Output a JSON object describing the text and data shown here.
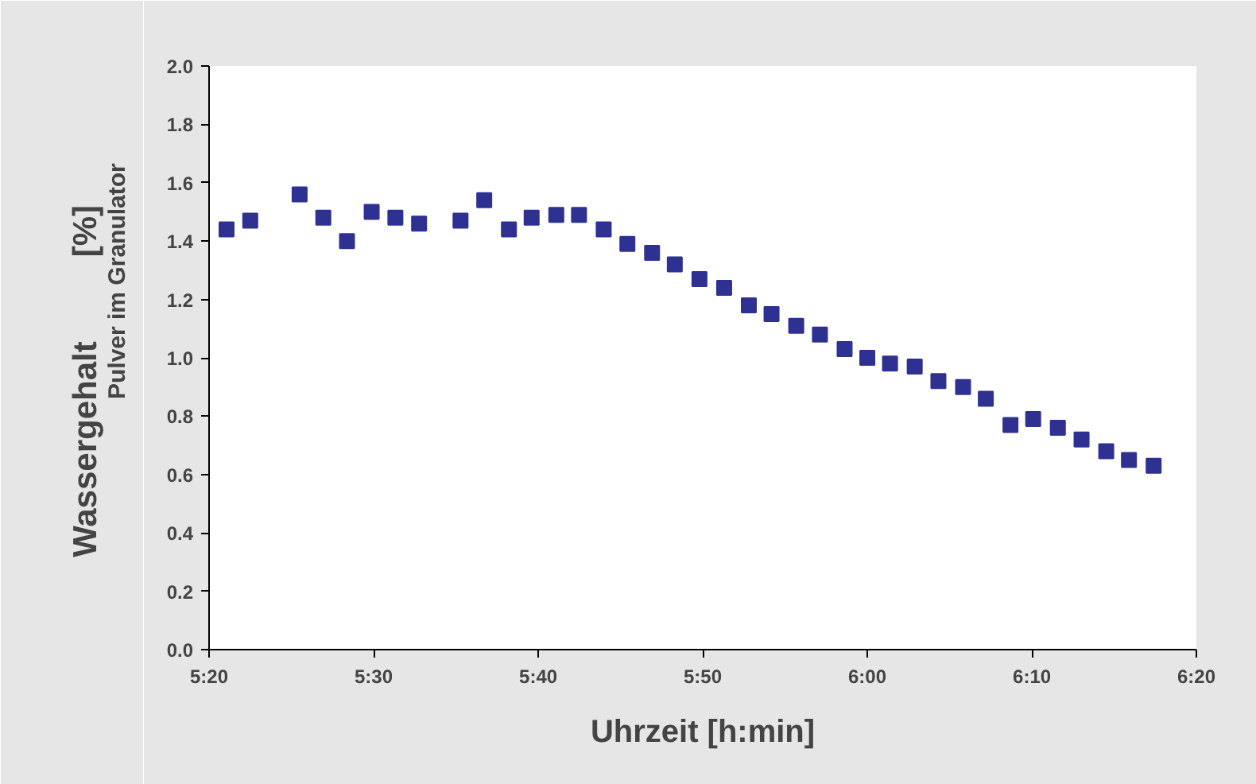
{
  "chart_data": {
    "type": "scatter",
    "xlabel": "Uhrzeit [h:min]",
    "ylabel": "Wassergehalt$_{Pulver im Granulator}$ [%]",
    "x": [
      5.351,
      5.375,
      5.425,
      5.449,
      5.473,
      5.498,
      5.522,
      5.546,
      5.588,
      5.612,
      5.637,
      5.66,
      5.685,
      5.708,
      5.733,
      5.757,
      5.782,
      5.805,
      5.83,
      5.855,
      5.88,
      5.903,
      5.928,
      5.952,
      5.977,
      6.0,
      6.023,
      6.048,
      6.072,
      6.097,
      6.12,
      6.145,
      6.168,
      6.193,
      6.217,
      6.242,
      6.265,
      6.29
    ],
    "series": [
      {
        "color": "#2e3192",
        "values": [
          1.44,
          1.47,
          1.56,
          1.48,
          1.4,
          1.5,
          1.48,
          1.46,
          1.47,
          1.54,
          1.44,
          1.48,
          1.49,
          1.49,
          1.44,
          1.39,
          1.36,
          1.32,
          1.27,
          1.24,
          1.18,
          1.15,
          1.11,
          1.08,
          1.03,
          1.0,
          0.98,
          0.97,
          0.92,
          0.9,
          0.86,
          0.77,
          0.79,
          0.76,
          0.72,
          0.68,
          0.65,
          0.63
        ]
      }
    ],
    "xlim": [
      5.3333,
      6.3333
    ],
    "xticks": [
      {
        "value": 5.3333,
        "label": "5:20"
      },
      {
        "value": 5.5,
        "label": "5:30"
      },
      {
        "value": 5.6667,
        "label": "5:40"
      },
      {
        "value": 5.8333,
        "label": "5:50"
      },
      {
        "value": 6.0,
        "label": "6:00"
      },
      {
        "value": 6.1667,
        "label": "6:10"
      },
      {
        "value": 6.3333,
        "label": "6:20"
      }
    ],
    "ylim": [
      0,
      2.0
    ],
    "yticks": [
      {
        "value": 0,
        "label": "0.0"
      },
      {
        "value": 0.2,
        "label": "0.2"
      },
      {
        "value": 0.4,
        "label": "0.4"
      },
      {
        "value": 0.6,
        "label": "0.6"
      },
      {
        "value": 0.8,
        "label": "0.8"
      },
      {
        "value": 1.0,
        "label": "1.0"
      },
      {
        "value": 1.2,
        "label": "1.2"
      },
      {
        "value": 1.4,
        "label": "1.4"
      },
      {
        "value": 1.6,
        "label": "1.6"
      },
      {
        "value": 1.8,
        "label": "1.8"
      },
      {
        "value": 2.0,
        "label": "2.0"
      }
    ],
    "marker": "square",
    "grid": false
  }
}
